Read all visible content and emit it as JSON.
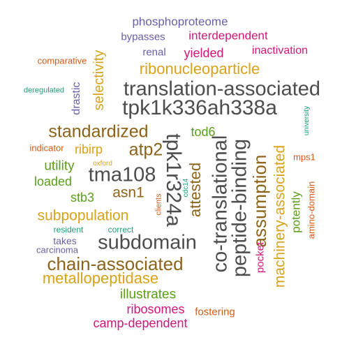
{
  "palette": {
    "gray": "#4d4d4d",
    "gold": "#d9a21b",
    "brown": "#8c6318",
    "green": "#5a9e1a",
    "magenta": "#d6157a",
    "purple": "#6a5fa8",
    "orange": "#d45a12",
    "teal": "#1a9e78"
  },
  "words": [
    {
      "text": "phosphoproteome",
      "size": 17,
      "color": "purple",
      "rot": 0
    },
    {
      "text": "bypasses",
      "size": 15,
      "color": "purple",
      "rot": 0
    },
    {
      "text": "interdependent",
      "size": 17,
      "color": "magenta",
      "rot": 0
    },
    {
      "text": "comparative",
      "size": 13,
      "color": "orange",
      "rot": 0
    },
    {
      "text": "renal",
      "size": 15,
      "color": "purple",
      "rot": 0
    },
    {
      "text": "yielded",
      "size": 18,
      "color": "magenta",
      "rot": 0
    },
    {
      "text": "inactivation",
      "size": 16,
      "color": "magenta",
      "rot": 0
    },
    {
      "text": "selectivity",
      "size": 20,
      "color": "gold",
      "rot": -90
    },
    {
      "text": "ribonucleoparticle",
      "size": 22,
      "color": "gold",
      "rot": 0
    },
    {
      "text": "deregulated",
      "size": 11,
      "color": "teal",
      "rot": 0
    },
    {
      "text": "drastic",
      "size": 16,
      "color": "purple",
      "rot": -90
    },
    {
      "text": "translation-associated",
      "size": 29,
      "color": "gray",
      "rot": 0
    },
    {
      "text": "tpk1k336ah338a",
      "size": 30,
      "color": "gray",
      "rot": 0
    },
    {
      "text": "university",
      "size": 10,
      "color": "teal",
      "rot": -90
    },
    {
      "text": "standardized",
      "size": 25,
      "color": "brown",
      "rot": 0
    },
    {
      "text": "tod6",
      "size": 18,
      "color": "green",
      "rot": 0
    },
    {
      "text": "indicator",
      "size": 13,
      "color": "orange",
      "rot": 0
    },
    {
      "text": "ribirp",
      "size": 18,
      "color": "gold",
      "rot": 0
    },
    {
      "text": "atp2",
      "size": 25,
      "color": "brown",
      "rot": 0
    },
    {
      "text": "tpk1r324a",
      "size": 30,
      "color": "gray",
      "rot": 90
    },
    {
      "text": "co-translational",
      "size": 29,
      "color": "gray",
      "rot": -90
    },
    {
      "text": "peptide-binding",
      "size": 29,
      "color": "gray",
      "rot": -90
    },
    {
      "text": "assumption",
      "size": 26,
      "color": "brown",
      "rot": -90
    },
    {
      "text": "machinery-associated",
      "size": 21,
      "color": "gold",
      "rot": -90
    },
    {
      "text": "mps1",
      "size": 13,
      "color": "orange",
      "rot": 0
    },
    {
      "text": "utility",
      "size": 19,
      "color": "green",
      "rot": 0
    },
    {
      "text": "oxford",
      "size": 10,
      "color": "gold",
      "rot": 0
    },
    {
      "text": "tma108",
      "size": 29,
      "color": "gray",
      "rot": 0
    },
    {
      "text": "loaded",
      "size": 18,
      "color": "green",
      "rot": 0
    },
    {
      "text": "asn1",
      "size": 21,
      "color": "brown",
      "rot": 0
    },
    {
      "text": "attested",
      "size": 22,
      "color": "brown",
      "rot": -90
    },
    {
      "text": "cdc14",
      "size": 10,
      "color": "teal",
      "rot": -90
    },
    {
      "text": "stb3",
      "size": 18,
      "color": "green",
      "rot": 0
    },
    {
      "text": "amino-domain",
      "size": 13,
      "color": "orange",
      "rot": -90
    },
    {
      "text": "potently",
      "size": 17,
      "color": "green",
      "rot": -90
    },
    {
      "text": "clients",
      "size": 11,
      "color": "orange",
      "rot": -90
    },
    {
      "text": "subpopulation",
      "size": 21,
      "color": "gold",
      "rot": 0
    },
    {
      "text": "resident",
      "size": 12,
      "color": "teal",
      "rot": 0
    },
    {
      "text": "correct",
      "size": 12,
      "color": "teal",
      "rot": 0
    },
    {
      "text": "takes",
      "size": 14,
      "color": "purple",
      "rot": 0
    },
    {
      "text": "subdomain",
      "size": 29,
      "color": "gray",
      "rot": 0
    },
    {
      "text": "carcinoma",
      "size": 13,
      "color": "purple",
      "rot": 0
    },
    {
      "text": "pocket",
      "size": 15,
      "color": "magenta",
      "rot": -90
    },
    {
      "text": "chain-associated",
      "size": 26,
      "color": "brown",
      "rot": 0
    },
    {
      "text": "metallopeptidase",
      "size": 22,
      "color": "gold",
      "rot": 0
    },
    {
      "text": "illustrates",
      "size": 19,
      "color": "green",
      "rot": 0
    },
    {
      "text": "ribosomes",
      "size": 18,
      "color": "magenta",
      "rot": 0
    },
    {
      "text": "fostering",
      "size": 15,
      "color": "orange",
      "rot": 0
    },
    {
      "text": "camp-dependent",
      "size": 18,
      "color": "magenta",
      "rot": 0
    }
  ]
}
